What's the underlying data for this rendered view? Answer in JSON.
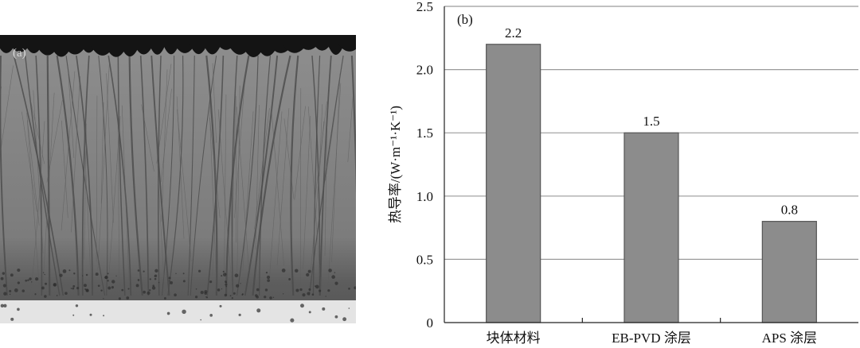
{
  "panel_a": {
    "label": "(a)",
    "image": "columnar-microstructure-micrograph"
  },
  "chart_data": {
    "type": "bar",
    "panel_label": "(b)",
    "title": "",
    "xlabel": "",
    "ylabel": "热导率/(W·m⁻¹·K⁻¹)",
    "categories": [
      "块体材料",
      "EB-PVD 涂层",
      "APS 涂层"
    ],
    "values": [
      2.2,
      1.5,
      0.8
    ],
    "data_labels": [
      "2.2",
      "1.5",
      "0.8"
    ],
    "ylim": [
      0,
      2.5
    ],
    "yticks": [
      0,
      0.5,
      1.0,
      1.5,
      2.0,
      2.5
    ],
    "ytick_labels": [
      "0",
      "0.5",
      "1.0",
      "1.5",
      "2.0",
      "2.5"
    ],
    "grid": true,
    "bar_color": "#8c8c8c",
    "bar_edge_color": "#555555",
    "grid_color": "#9a9a9a"
  }
}
